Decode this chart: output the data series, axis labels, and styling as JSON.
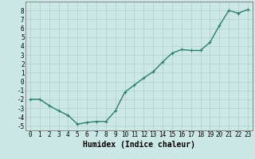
{
  "x": [
    0,
    1,
    2,
    3,
    4,
    5,
    6,
    7,
    8,
    9,
    10,
    11,
    12,
    13,
    14,
    15,
    16,
    17,
    18,
    19,
    20,
    21,
    22,
    23
  ],
  "y": [
    -2,
    -2,
    -2.7,
    -3.3,
    -3.8,
    -4.8,
    -4.6,
    -4.5,
    -4.5,
    -3.3,
    -1.2,
    -0.4,
    0.4,
    1.1,
    2.2,
    3.2,
    3.6,
    3.5,
    3.5,
    4.4,
    6.3,
    8.0,
    7.7,
    8.1
  ],
  "line_color": "#2e7d6e",
  "marker": "+",
  "bg_color": "#cce8e4",
  "grid_color": "#aecfca",
  "xlabel": "Humidex (Indice chaleur)",
  "xlim": [
    -0.5,
    23.5
  ],
  "ylim": [
    -5.5,
    9.0
  ],
  "xticks": [
    0,
    1,
    2,
    3,
    4,
    5,
    6,
    7,
    8,
    9,
    10,
    11,
    12,
    13,
    14,
    15,
    16,
    17,
    18,
    19,
    20,
    21,
    22,
    23
  ],
  "yticks": [
    -5,
    -4,
    -3,
    -2,
    -1,
    0,
    1,
    2,
    3,
    4,
    5,
    6,
    7,
    8
  ],
  "tick_fontsize": 5.5,
  "xlabel_fontsize": 7,
  "linewidth": 1.0,
  "markersize": 3,
  "markeredgewidth": 0.8
}
